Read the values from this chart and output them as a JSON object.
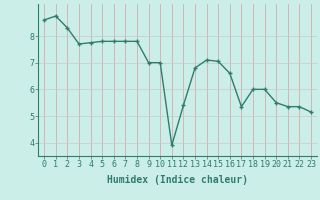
{
  "xlabel": "Humidex (Indice chaleur)",
  "x": [
    0,
    1,
    2,
    3,
    4,
    5,
    6,
    7,
    8,
    9,
    10,
    11,
    12,
    13,
    14,
    15,
    16,
    17,
    18,
    19,
    20,
    21,
    22,
    23
  ],
  "y": [
    8.6,
    8.75,
    8.3,
    7.7,
    7.75,
    7.8,
    7.8,
    7.8,
    7.8,
    7.0,
    7.0,
    3.9,
    5.4,
    6.8,
    7.1,
    7.05,
    6.6,
    5.35,
    6.0,
    6.0,
    5.5,
    5.35,
    5.35,
    5.15
  ],
  "ylim": [
    3.5,
    9.2
  ],
  "xlim": [
    -0.5,
    23.5
  ],
  "yticks": [
    4,
    5,
    6,
    7,
    8
  ],
  "xticks": [
    0,
    1,
    2,
    3,
    4,
    5,
    6,
    7,
    8,
    9,
    10,
    11,
    12,
    13,
    14,
    15,
    16,
    17,
    18,
    19,
    20,
    21,
    22,
    23
  ],
  "line_color": "#2e7d6e",
  "marker_color": "#2e7d6e",
  "bg_color": "#cceee8",
  "grid_color_v": "#d4a0a0",
  "grid_color_h": "#c8c8c8",
  "axis_color": "#2e7d6e",
  "tick_color": "#2e7d6e",
  "label_color": "#2e7d6e",
  "xlabel_fontsize": 7,
  "tick_fontsize": 6,
  "line_width": 1.0,
  "marker_size": 2.5
}
